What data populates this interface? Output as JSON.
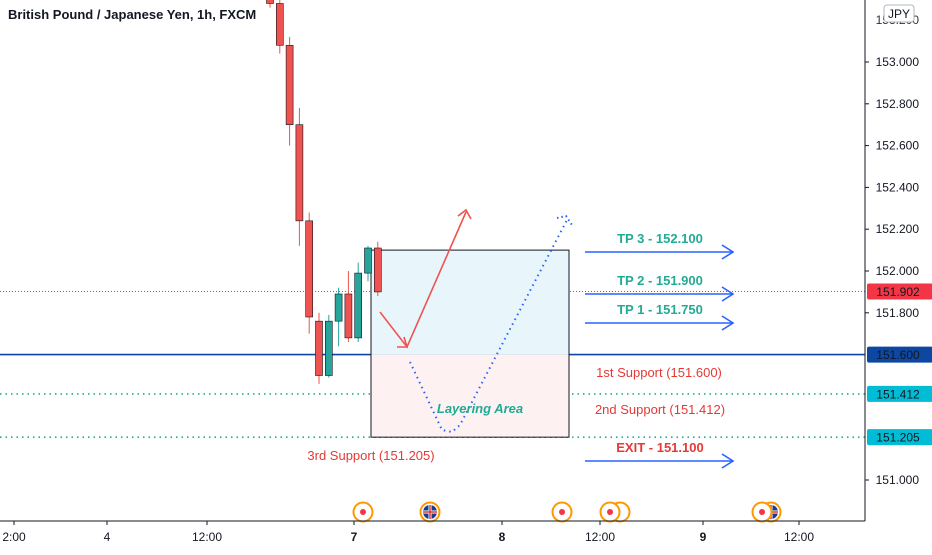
{
  "chart_title": "British Pound / Japanese Yen, 1h, FXCM",
  "currency_badge": "JPY",
  "colors": {
    "up": "#26a69a",
    "down": "#ef5350",
    "navy": "#1f3a93",
    "teal": "#22ab94",
    "red_text": "#e53935",
    "blue_arrow": "#2962ff",
    "grid": "#e0e3eb",
    "price_label_red": "#f23645",
    "price_label_navy": "#0d47a1",
    "price_label_cyan": "#00bcd4",
    "box_fill_top": "#e8f6fb",
    "box_fill_bottom": "#fdf1f2",
    "event_orange": "#ff9800"
  },
  "chart_data": {
    "type": "candlestick",
    "title": "British Pound / Japanese Yen, 1h, FXCM",
    "ylim": [
      150.82,
      153.3
    ],
    "y_ticks": [
      "153.000",
      "152.800",
      "152.600",
      "152.400",
      "152.200",
      "152.000",
      "151.800",
      "151.000"
    ],
    "y_tick_values": [
      153.0,
      152.8,
      152.6,
      152.4,
      152.2,
      152.0,
      151.8,
      151.0
    ],
    "x_labels": [
      {
        "label": "2:00",
        "index": -28
      },
      {
        "label": "4",
        "index": -18
      },
      {
        "label": "12:00",
        "index": -10
      },
      {
        "label": "7",
        "index": 5
      },
      {
        "label": "8",
        "index": 20
      },
      {
        "label": "12:00",
        "index": 30
      },
      {
        "label": "9",
        "index": 40
      },
      {
        "label": "12:00",
        "index": 50
      }
    ],
    "candles": [
      {
        "i": 0,
        "o": 153.32,
        "h": 153.4,
        "l": 153.26,
        "c": 153.28
      },
      {
        "i": 1,
        "o": 153.28,
        "h": 153.3,
        "l": 153.04,
        "c": 153.08
      },
      {
        "i": 2,
        "o": 153.08,
        "h": 153.12,
        "l": 152.6,
        "c": 152.7
      },
      {
        "i": 3,
        "o": 152.7,
        "h": 152.78,
        "l": 152.12,
        "c": 152.24
      },
      {
        "i": 4,
        "o": 152.24,
        "h": 152.28,
        "l": 151.7,
        "c": 151.78
      },
      {
        "i": 5,
        "o": 151.76,
        "h": 151.8,
        "l": 151.46,
        "c": 151.5
      },
      {
        "i": 6,
        "o": 151.5,
        "h": 151.79,
        "l": 151.49,
        "c": 151.76
      },
      {
        "i": 7,
        "o": 151.76,
        "h": 151.92,
        "l": 151.64,
        "c": 151.89
      },
      {
        "i": 8,
        "o": 151.89,
        "h": 152.0,
        "l": 151.66,
        "c": 151.68
      },
      {
        "i": 9,
        "o": 151.68,
        "h": 152.04,
        "l": 151.66,
        "c": 151.99
      },
      {
        "i": 10,
        "o": 151.99,
        "h": 152.12,
        "l": 151.95,
        "c": 152.11
      },
      {
        "i": 11,
        "o": 152.11,
        "h": 152.14,
        "l": 151.88,
        "c": 151.9
      }
    ],
    "price_labels": [
      {
        "text": "151.902",
        "value": 151.902,
        "style": "red"
      },
      {
        "text": "151.600",
        "value": 151.6,
        "style": "navy"
      },
      {
        "text": "151.412",
        "value": 151.412,
        "style": "cyan"
      },
      {
        "text": "151.205",
        "value": 151.205,
        "style": "cyan"
      }
    ],
    "horizontal_lines": [
      {
        "value": 151.902,
        "style": "red-dotted"
      },
      {
        "value": 151.6,
        "style": "navy-solid"
      },
      {
        "value": 151.412,
        "style": "teal-dotted"
      },
      {
        "value": 151.205,
        "style": "teal-dotted"
      }
    ],
    "layering_box": {
      "x_start": 7,
      "x_end": 15,
      "top": 152.1,
      "middle": 151.6,
      "bottom": 151.205
    },
    "targets": [
      {
        "label": "TP 3 - 152.100",
        "value": 152.1
      },
      {
        "label": "TP 2 - 151.900",
        "value": 151.9
      },
      {
        "label": "TP 1 - 151.750",
        "value": 151.75
      }
    ],
    "support_levels": [
      {
        "label": "1st Support (151.600)",
        "value": 151.6
      },
      {
        "label": "2nd Support (151.412)",
        "value": 151.412
      },
      {
        "label": "3rd Support (151.205)",
        "value": 151.205
      }
    ],
    "exit": {
      "label": "EXIT - 151.100",
      "value": 151.1
    },
    "layering_area_label": "Layering Area",
    "events": [
      {
        "type": "red-dot",
        "index": 5
      },
      {
        "type": "uk-flag",
        "index": 8
      },
      {
        "type": "red-dot",
        "index": 15
      },
      {
        "type": "red-dot-double",
        "index": 18
      },
      {
        "type": "red-dot-uk",
        "index": 28
      }
    ]
  }
}
